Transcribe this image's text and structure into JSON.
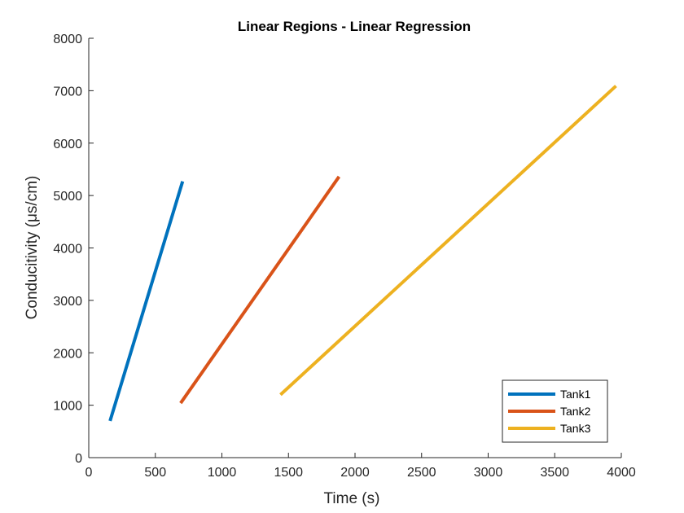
{
  "chart_data": {
    "type": "line",
    "title": "Linear Regions - Linear Regression",
    "xlabel": "Time (s)",
    "ylabel": "Conducitivity (μs/cm)",
    "xlim": [
      0,
      4000
    ],
    "ylim": [
      0,
      8000
    ],
    "xticks": [
      0,
      500,
      1000,
      1500,
      2000,
      2500,
      3000,
      3500,
      4000
    ],
    "yticks": [
      0,
      1000,
      2000,
      3000,
      4000,
      5000,
      6000,
      7000,
      8000
    ],
    "grid": false,
    "legend_position": "bottom-right",
    "series": [
      {
        "name": "Tank1",
        "color": "#0072BD",
        "x": [
          160,
          705
        ],
        "y": [
          700,
          5270
        ]
      },
      {
        "name": "Tank2",
        "color": "#D95319",
        "x": [
          690,
          1880
        ],
        "y": [
          1040,
          5360
        ]
      },
      {
        "name": "Tank3",
        "color": "#EDB120",
        "x": [
          1440,
          3960
        ],
        "y": [
          1200,
          7090
        ]
      }
    ]
  }
}
